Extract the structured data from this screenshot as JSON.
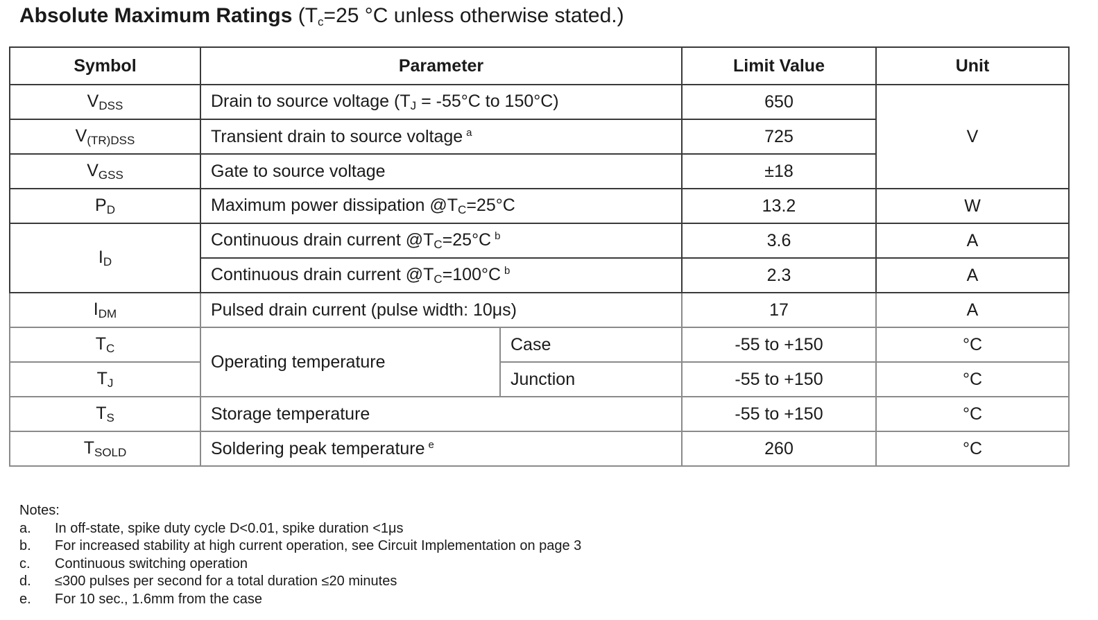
{
  "title": {
    "bold": "Absolute Maximum Ratings",
    "parts": [
      {
        "text": " (T"
      },
      {
        "sub": "c"
      },
      {
        "text": "=25 °C unless otherwise stated.)"
      }
    ]
  },
  "table": {
    "header": [
      "Symbol",
      "Parameter",
      "Limit Value",
      "Unit"
    ],
    "rows": [
      {
        "symbol": [
          {
            "text": "V"
          },
          {
            "sub": "DSS"
          }
        ],
        "parameter": [
          {
            "text": "Drain to source voltage (T"
          },
          {
            "sub": "J"
          },
          {
            "text": " = -55°C to 150°C)"
          }
        ],
        "value": "650",
        "unit": "V"
      },
      {
        "symbol": [
          {
            "text": "V"
          },
          {
            "sub": "(TR)DSS"
          }
        ],
        "parameter": [
          {
            "text": "Transient drain to source voltage"
          },
          {
            "sup": "a"
          }
        ],
        "value": "725"
      },
      {
        "symbol": [
          {
            "text": "V"
          },
          {
            "sub": "GSS"
          }
        ],
        "parameter": [
          {
            "text": "Gate to source voltage"
          }
        ],
        "value": "±18"
      },
      {
        "symbol": [
          {
            "text": "P"
          },
          {
            "sub": "D"
          }
        ],
        "parameter": [
          {
            "text": "Maximum power dissipation @T"
          },
          {
            "sub": "C"
          },
          {
            "text": "=25°C"
          }
        ],
        "value": "13.2",
        "unit": "W"
      },
      {
        "symbol": [
          {
            "text": "I"
          },
          {
            "sub": "D"
          }
        ],
        "parameter": [
          {
            "text": "Continuous drain current @T"
          },
          {
            "sub": "C"
          },
          {
            "text": "=25°C"
          },
          {
            "sup": "b"
          }
        ],
        "value": "3.6",
        "unit": "A"
      },
      {
        "parameter": [
          {
            "text": "Continuous drain current @T"
          },
          {
            "sub": "C"
          },
          {
            "text": "=100°C"
          },
          {
            "sup": "b"
          }
        ],
        "value": "2.3",
        "unit": "A"
      },
      {
        "symbol": [
          {
            "text": "I"
          },
          {
            "sub": "DM"
          }
        ],
        "parameter": [
          {
            "text": "Pulsed drain current (pulse width: 10μs)"
          }
        ],
        "value": "17",
        "unit": "A"
      },
      {
        "symbol": [
          {
            "text": "T"
          },
          {
            "sub": "C"
          }
        ],
        "parameter": [
          {
            "text": "Operating temperature"
          }
        ],
        "condition": "Case",
        "value": "-55 to +150",
        "unit": "°C"
      },
      {
        "symbol": [
          {
            "text": "T"
          },
          {
            "sub": "J"
          }
        ],
        "condition": "Junction",
        "value": "-55 to +150",
        "unit": "°C"
      },
      {
        "symbol": [
          {
            "text": "T"
          },
          {
            "sub": "S"
          }
        ],
        "parameter": [
          {
            "text": "Storage temperature"
          }
        ],
        "value": "-55 to +150",
        "unit": "°C"
      },
      {
        "symbol": [
          {
            "text": "T"
          },
          {
            "sub": "SOLD"
          }
        ],
        "parameter": [
          {
            "text": "Soldering peak temperature"
          },
          {
            "sup": "e"
          }
        ],
        "value": "260",
        "unit": "°C"
      }
    ]
  },
  "notes": {
    "heading": "Notes:",
    "items": [
      {
        "letter": "a.",
        "text": "In off-state, spike duty cycle D<0.01, spike duration <1μs"
      },
      {
        "letter": "b.",
        "text": "For increased stability at high current operation, see Circuit Implementation on page 3"
      },
      {
        "letter": "c.",
        "text": "Continuous switching operation"
      },
      {
        "letter": "d.",
        "text": "≤300 pulses per second for a total duration ≤20 minutes"
      },
      {
        "letter": "e.",
        "text": "For 10 sec., 1.6mm from the case"
      }
    ]
  }
}
